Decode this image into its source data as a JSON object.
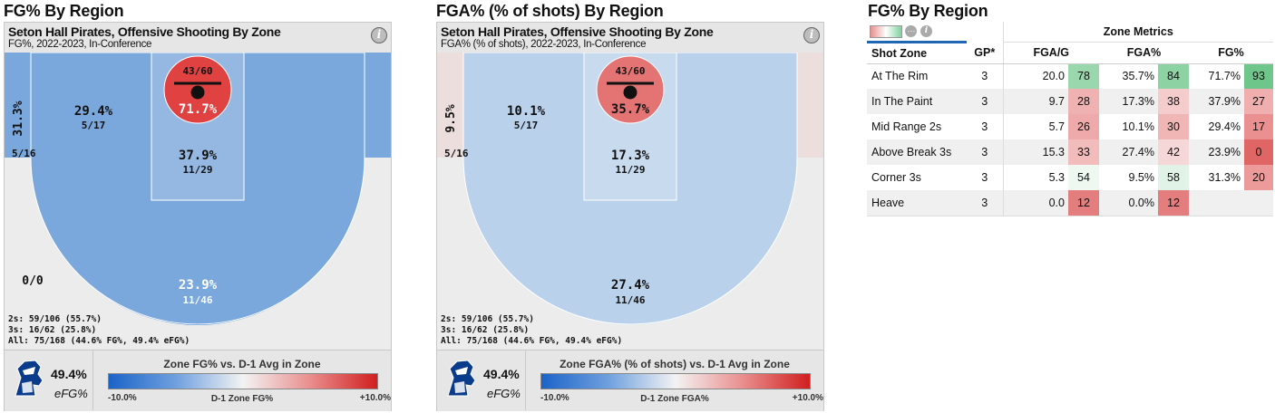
{
  "sections": {
    "left_title": "FG% By Region",
    "mid_title": "FGA% (% of shots) By Region",
    "right_title": "FG% By Region"
  },
  "colors": {
    "blue_dark": "#2176d2",
    "blue_mid": "#7aa8dc",
    "blue_light": "#b9d1ea",
    "blue_pale": "#d5e3f1",
    "red_hot": "#e04141",
    "red_mid": "#e47474",
    "pink_pale": "#eddede",
    "gray_court": "#ececec"
  },
  "chart_data": [
    {
      "type": "heatmap",
      "title": "Seton Hall Pirates, Offensive Shooting By Zone",
      "subtitle": "FG%, 2022-2023, In-Conference",
      "zones": [
        {
          "zone": "At The Rim",
          "value": "71.7%",
          "made_att": "43/60"
        },
        {
          "zone": "In The Paint",
          "value": "37.9%",
          "made_att": "11/29"
        },
        {
          "zone": "Mid Range 2s",
          "value": "29.4%",
          "made_att": "5/17"
        },
        {
          "zone": "Corner 3s",
          "value": "31.3%",
          "made_att": "5/16"
        },
        {
          "zone": "Above Break 3s",
          "value": "23.9%",
          "made_att": "11/46"
        },
        {
          "zone": "Heave",
          "value": "",
          "made_att": "0/0"
        }
      ],
      "summary": [
        "2s: 59/106 (55.7%)",
        "3s: 16/62 (25.8%)",
        "All: 75/168 (44.6% FG%, 49.4% eFG%)"
      ],
      "efg": "49.4%",
      "efg_label": "eFG%",
      "legend_title": "Zone FG% vs. D-1 Avg in Zone",
      "legend_min": "-10.0%",
      "legend_max": "+10.0%",
      "legend_caption": "D-1 Zone FG%"
    },
    {
      "type": "heatmap",
      "title": "Seton Hall Pirates, Offensive Shooting By Zone",
      "subtitle": "FGA% (% of shots), 2022-2023, In-Conference",
      "zones": [
        {
          "zone": "At The Rim",
          "value": "35.7%",
          "made_att": "43/60"
        },
        {
          "zone": "In The Paint",
          "value": "17.3%",
          "made_att": "11/29"
        },
        {
          "zone": "Mid Range 2s",
          "value": "10.1%",
          "made_att": "5/17"
        },
        {
          "zone": "Corner 3s",
          "value": "9.5%",
          "made_att": "5/16"
        },
        {
          "zone": "Above Break 3s",
          "value": "27.4%",
          "made_att": "11/46"
        },
        {
          "zone": "Heave",
          "value": "",
          "made_att": ""
        }
      ],
      "summary": [
        "2s: 59/106 (55.7%)",
        "3s: 16/62 (25.8%)",
        "All: 75/168 (44.6% FG%, 49.4% eFG%)"
      ],
      "efg": "49.4%",
      "efg_label": "eFG%",
      "legend_title": "Zone FGA% (% of shots) vs. D-1 Avg in Zone",
      "legend_min": "-10.0%",
      "legend_max": "+10.0%",
      "legend_caption": "D-1 Zone FGA%"
    },
    {
      "type": "table",
      "group_header": "Zone Metrics",
      "columns": [
        "Shot Zone",
        "GP*",
        "FGA/G",
        "FGA%",
        "FG%"
      ],
      "rows": [
        {
          "zone": "At The Rim",
          "gp": "3",
          "fga_g": "20.0",
          "fga_g_pct": "78",
          "fga_pct": "35.7%",
          "fga_pct_pct": "84",
          "fg": "71.7%",
          "fg_pct": "93"
        },
        {
          "zone": "In The Paint",
          "gp": "3",
          "fga_g": "9.7",
          "fga_g_pct": "28",
          "fga_pct": "17.3%",
          "fga_pct_pct": "38",
          "fg": "37.9%",
          "fg_pct": "27"
        },
        {
          "zone": "Mid Range 2s",
          "gp": "3",
          "fga_g": "5.7",
          "fga_g_pct": "26",
          "fga_pct": "10.1%",
          "fga_pct_pct": "30",
          "fg": "29.4%",
          "fg_pct": "17"
        },
        {
          "zone": "Above Break 3s",
          "gp": "3",
          "fga_g": "15.3",
          "fga_g_pct": "33",
          "fga_pct": "27.4%",
          "fga_pct_pct": "42",
          "fg": "23.9%",
          "fg_pct": "0"
        },
        {
          "zone": "Corner 3s",
          "gp": "3",
          "fga_g": "5.3",
          "fga_g_pct": "54",
          "fga_pct": "9.5%",
          "fga_pct_pct": "58",
          "fg": "31.3%",
          "fg_pct": "20"
        },
        {
          "zone": "Heave",
          "gp": "3",
          "fga_g": "0.0",
          "fga_g_pct": "12",
          "fga_pct": "0.0%",
          "fga_pct_pct": "12",
          "fg": "",
          "fg_pct": ""
        }
      ]
    }
  ]
}
